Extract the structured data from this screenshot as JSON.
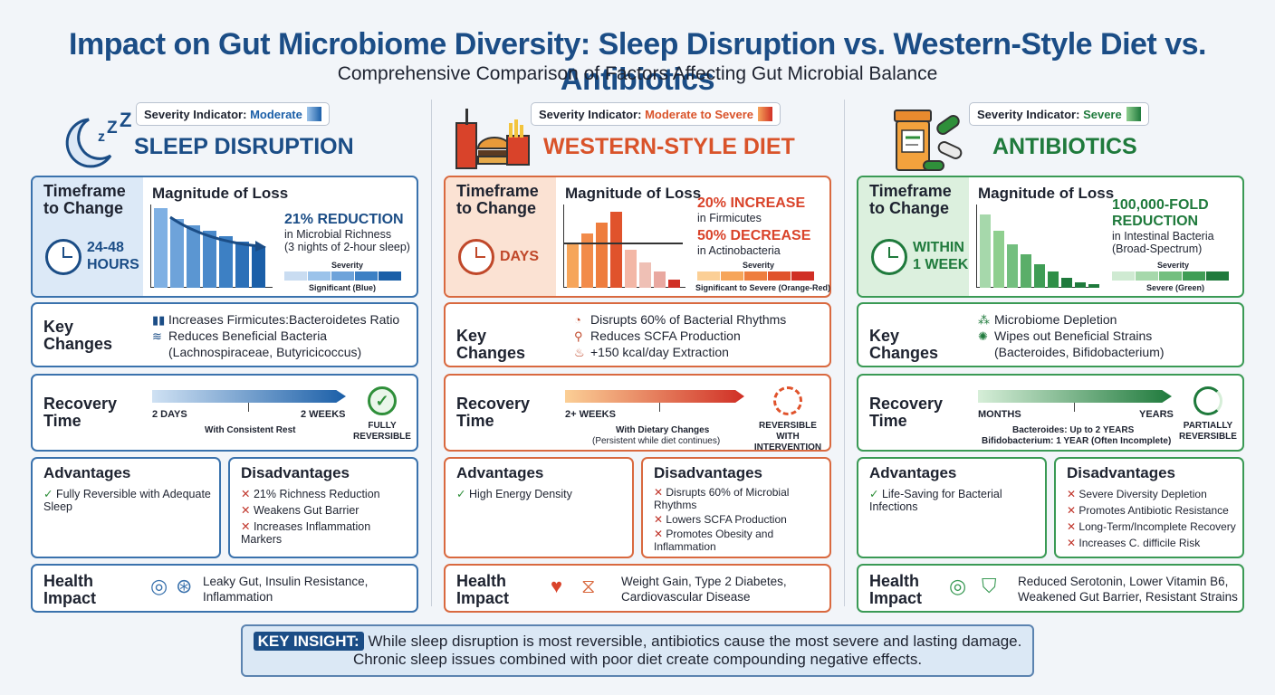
{
  "title": "Impact on Gut Microbiome Diversity: Sleep Disruption vs. Western-Style Diet vs. Antibiotics",
  "subtitle": "Comprehensive Comparison of Factors Affecting Gut Microbial Balance",
  "common": {
    "severity_prefix": "Severity Indicator:",
    "timeframe_label": "Timeframe to Change",
    "magnitude_label": "Magnitude of Loss",
    "severity_word": "Severity",
    "key_changes_label": "Key Changes",
    "recovery_label": "Recovery Time",
    "advantages_label": "Advantages",
    "disadvantages_label": "Disadvantages",
    "health_label": "Health Impact"
  },
  "sleep": {
    "severity": "Moderate",
    "name": "SLEEP DISRUPTION",
    "accent": "#1b4d86",
    "timeframe": "24-48 HOURS",
    "mag_big": "21% REDUCTION",
    "mag_line1": "in Microbial Richness",
    "mag_line2": "(3 nights of 2-hour sleep)",
    "scale_label": "Significant (Blue)",
    "bars": [
      1.0,
      0.86,
      0.78,
      0.72,
      0.65,
      0.58,
      0.52
    ],
    "key": [
      "Increases Firmicutes:Bacteroidetes Ratio",
      "Reduces Beneficial Bacteria",
      "(Lachnospiraceae, Butyricicoccus)"
    ],
    "rec_start": "2 DAYS",
    "rec_end": "2 WEEKS",
    "rec_sub": "With Consistent Rest",
    "rec_status": "FULLY REVERSIBLE",
    "adv": [
      "Fully Reversible with Adequate Sleep"
    ],
    "dis": [
      "21% Richness Reduction",
      "Weakens Gut Barrier",
      "Increases Inflammation Markers"
    ],
    "health": "Leaky Gut, Insulin Resistance, Inflammation"
  },
  "diet": {
    "severity": "Moderate to Severe",
    "name": "WESTERN-STYLE DIET",
    "accent": "#d9532a",
    "timeframe": "DAYS",
    "mag_big1": "20% INCREASE",
    "mag_line1": "in Firmicutes",
    "mag_big2": "50% DECREASE",
    "mag_line2": "in Actinobacteria",
    "scale_label": "Significant to Severe (Orange-Red)",
    "bars": [
      0.55,
      0.68,
      0.82,
      0.95,
      0.48,
      0.32,
      0.2,
      0.1
    ],
    "key": [
      "Disrupts 60% of Bacterial Rhythms",
      "Reduces SCFA Production",
      "+150 kcal/day Extraction"
    ],
    "rec_start": "2+ WEEKS",
    "rec_sub1": "With Dietary Changes",
    "rec_sub2": "(Persistent while diet continues)",
    "rec_status": "REVERSIBLE WITH INTERVENTION",
    "adv": [
      "High Energy Density"
    ],
    "dis": [
      "Disrupts 60% of Microbial Rhythms",
      "Lowers SCFA Production",
      "Promotes Obesity and Inflammation"
    ],
    "health": "Weight Gain, Type 2 Diabetes, Cardiovascular Disease"
  },
  "abx": {
    "severity": "Severe",
    "name": "ANTIBIOTICS",
    "accent": "#1f7a3c",
    "timeframe": "WITHIN 1 WEEK",
    "mag_big": "100,000-FOLD REDUCTION",
    "mag_line1": "in Intestinal Bacteria",
    "mag_line2": "(Broad-Spectrum)",
    "scale_label": "Severe (Green)",
    "bars": [
      0.92,
      0.72,
      0.55,
      0.42,
      0.3,
      0.2,
      0.12,
      0.07,
      0.04
    ],
    "key": [
      "Microbiome Depletion",
      "Wipes out Beneficial Strains",
      "(Bacteroides, Bifidobacterium)"
    ],
    "rec_start": "MONTHS",
    "rec_end": "YEARS",
    "rec_sub1": "Bacteroides: Up to 2 YEARS",
    "rec_sub2": "Bifidobacterium: 1 YEAR (Often Incomplete)",
    "rec_status": "PARTIALLY REVERSIBLE",
    "adv": [
      "Life-Saving for Bacterial Infections"
    ],
    "dis": [
      "Severe Diversity Depletion",
      "Promotes Antibiotic Resistance",
      "Long-Term/Incomplete Recovery",
      "Increases C. difficile Risk"
    ],
    "health": "Reduced Serotonin, Lower Vitamin B6, Weakened Gut Barrier, Resistant Strains"
  },
  "insight": {
    "tag": "KEY INSIGHT:",
    "line1": "While sleep disruption is most reversible, antibiotics cause the most severe and lasting damage.",
    "line2": "Chronic sleep issues combined with poor diet create compounding negative effects."
  }
}
